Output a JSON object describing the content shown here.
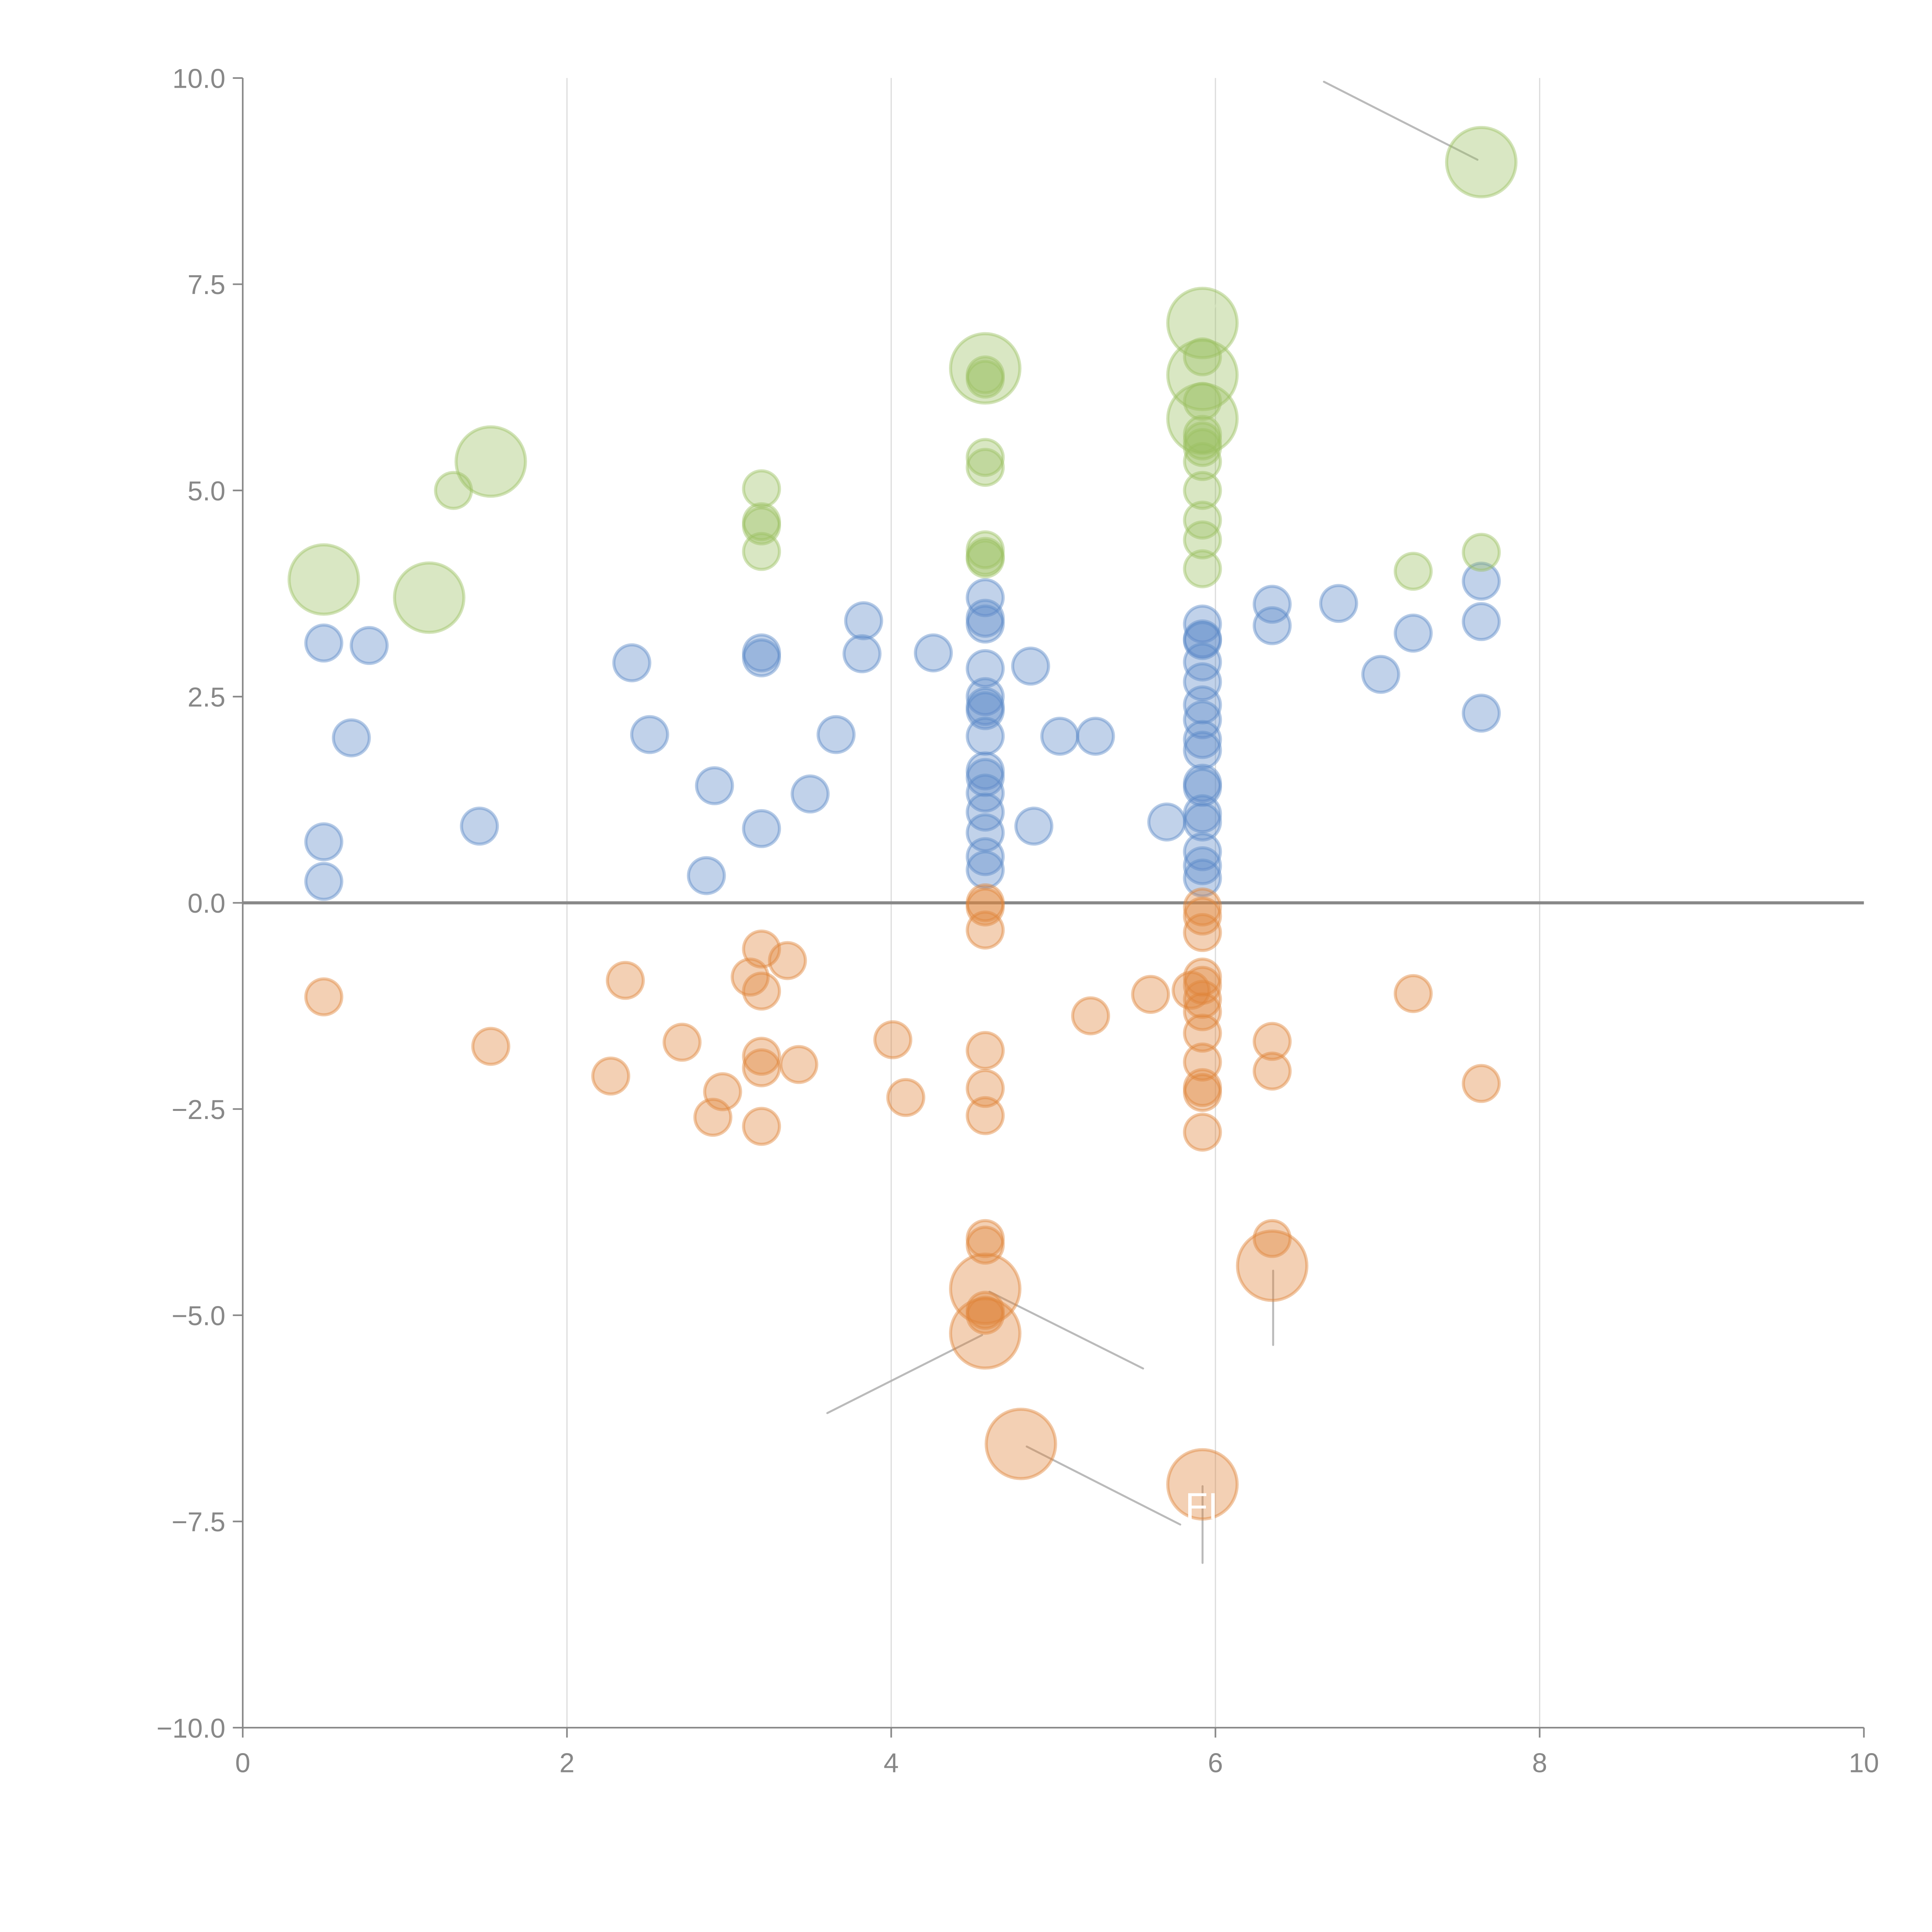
{
  "chart_data": {
    "type": "scatter",
    "title": "",
    "xlabel": "",
    "ylabel": "",
    "xlim": [
      0,
      10
    ],
    "ylim": [
      -10,
      10
    ],
    "x_ticks": [
      "0",
      "2",
      "4",
      "6",
      "8",
      "10"
    ],
    "y_ticks": [
      "10.0",
      "7.5",
      "5.0",
      "2.5",
      "0.0",
      "−2.5",
      "−5.0",
      "−7.5",
      "−10.0"
    ],
    "grid": "vertical",
    "reference_line_y": 0,
    "legend": "none",
    "series": [
      {
        "name": "blue",
        "color": "#5b8ac8",
        "points": [
          {
            "x": 0.5,
            "y": 3.15,
            "size": 1
          },
          {
            "x": 0.78,
            "y": 3.12,
            "size": 1
          },
          {
            "x": 0.67,
            "y": 2.0,
            "size": 1
          },
          {
            "x": 0.5,
            "y": 0.74,
            "size": 1
          },
          {
            "x": 0.5,
            "y": 0.26,
            "size": 1
          },
          {
            "x": 1.46,
            "y": 0.93,
            "size": 1
          },
          {
            "x": 2.4,
            "y": 2.91,
            "size": 1
          },
          {
            "x": 2.51,
            "y": 2.04,
            "size": 1
          },
          {
            "x": 2.91,
            "y": 1.42,
            "size": 1
          },
          {
            "x": 2.86,
            "y": 0.33,
            "size": 1
          },
          {
            "x": 3.2,
            "y": 3.03,
            "size": 1
          },
          {
            "x": 3.2,
            "y": 2.97,
            "size": 1
          },
          {
            "x": 3.2,
            "y": 0.9,
            "size": 1
          },
          {
            "x": 3.5,
            "y": 1.32,
            "size": 1
          },
          {
            "x": 3.66,
            "y": 2.04,
            "size": 1
          },
          {
            "x": 3.83,
            "y": 3.42,
            "size": 1
          },
          {
            "x": 3.82,
            "y": 3.02,
            "size": 1
          },
          {
            "x": 4.26,
            "y": 3.03,
            "size": 1
          },
          {
            "x": 4.58,
            "y": 3.7,
            "size": 1
          },
          {
            "x": 4.58,
            "y": 3.45,
            "size": 1
          },
          {
            "x": 4.58,
            "y": 3.38,
            "size": 1
          },
          {
            "x": 4.58,
            "y": 2.84,
            "size": 1
          },
          {
            "x": 4.58,
            "y": 2.5,
            "size": 1
          },
          {
            "x": 4.58,
            "y": 2.38,
            "size": 1
          },
          {
            "x": 4.58,
            "y": 2.33,
            "size": 1
          },
          {
            "x": 4.58,
            "y": 2.02,
            "size": 1
          },
          {
            "x": 4.58,
            "y": 1.6,
            "size": 1
          },
          {
            "x": 4.58,
            "y": 1.52,
            "size": 1
          },
          {
            "x": 4.58,
            "y": 1.33,
            "size": 1
          },
          {
            "x": 4.58,
            "y": 1.1,
            "size": 1
          },
          {
            "x": 4.58,
            "y": 0.85,
            "size": 1
          },
          {
            "x": 4.58,
            "y": 0.56,
            "size": 1
          },
          {
            "x": 4.58,
            "y": 0.4,
            "size": 1
          },
          {
            "x": 4.86,
            "y": 2.87,
            "size": 1
          },
          {
            "x": 4.88,
            "y": 0.93,
            "size": 1
          },
          {
            "x": 5.04,
            "y": 2.02,
            "size": 1
          },
          {
            "x": 5.26,
            "y": 2.02,
            "size": 1
          },
          {
            "x": 5.7,
            "y": 0.98,
            "size": 1
          },
          {
            "x": 5.92,
            "y": 3.38,
            "size": 1
          },
          {
            "x": 5.92,
            "y": 3.2,
            "size": 1
          },
          {
            "x": 5.92,
            "y": 3.18,
            "size": 1
          },
          {
            "x": 5.92,
            "y": 2.92,
            "size": 1
          },
          {
            "x": 5.92,
            "y": 2.68,
            "size": 1
          },
          {
            "x": 5.92,
            "y": 2.4,
            "size": 1
          },
          {
            "x": 5.92,
            "y": 2.22,
            "size": 1
          },
          {
            "x": 5.92,
            "y": 1.98,
            "size": 1
          },
          {
            "x": 5.92,
            "y": 1.85,
            "size": 1
          },
          {
            "x": 5.92,
            "y": 1.45,
            "size": 1
          },
          {
            "x": 5.92,
            "y": 1.4,
            "size": 1
          },
          {
            "x": 5.92,
            "y": 1.08,
            "size": 1
          },
          {
            "x": 5.92,
            "y": 0.98,
            "size": 1
          },
          {
            "x": 5.92,
            "y": 0.62,
            "size": 1
          },
          {
            "x": 5.92,
            "y": 0.45,
            "size": 1
          },
          {
            "x": 5.92,
            "y": 0.3,
            "size": 1
          },
          {
            "x": 6.35,
            "y": 3.62,
            "size": 1
          },
          {
            "x": 6.35,
            "y": 3.36,
            "size": 1
          },
          {
            "x": 6.76,
            "y": 3.63,
            "size": 1
          },
          {
            "x": 7.02,
            "y": 2.77,
            "size": 1
          },
          {
            "x": 7.22,
            "y": 3.27,
            "size": 1
          },
          {
            "x": 7.64,
            "y": 3.9,
            "size": 1
          },
          {
            "x": 7.64,
            "y": 3.41,
            "size": 1
          },
          {
            "x": 7.64,
            "y": 2.3,
            "size": 1
          }
        ]
      },
      {
        "name": "orange",
        "color": "#e0843a",
        "points": [
          {
            "x": 0.5,
            "y": -1.14,
            "size": 1
          },
          {
            "x": 1.53,
            "y": -1.74,
            "size": 1
          },
          {
            "x": 2.27,
            "y": -2.1,
            "size": 1
          },
          {
            "x": 2.36,
            "y": -0.94,
            "size": 1
          },
          {
            "x": 2.71,
            "y": -1.69,
            "size": 1
          },
          {
            "x": 2.9,
            "y": -2.6,
            "size": 1
          },
          {
            "x": 2.96,
            "y": -2.29,
            "size": 1
          },
          {
            "x": 3.13,
            "y": -0.9,
            "size": 1
          },
          {
            "x": 3.2,
            "y": -0.56,
            "size": 1
          },
          {
            "x": 3.2,
            "y": -1.07,
            "size": 1
          },
          {
            "x": 3.36,
            "y": -0.7,
            "size": 1
          },
          {
            "x": 3.2,
            "y": -1.86,
            "size": 1
          },
          {
            "x": 3.2,
            "y": -2.0,
            "size": 1
          },
          {
            "x": 3.43,
            "y": -1.96,
            "size": 1
          },
          {
            "x": 3.2,
            "y": -2.71,
            "size": 1
          },
          {
            "x": 4.01,
            "y": -1.66,
            "size": 1
          },
          {
            "x": 4.09,
            "y": -2.36,
            "size": 1
          },
          {
            "x": 4.58,
            "y": 0.0,
            "size": 1
          },
          {
            "x": 4.58,
            "y": -0.05,
            "size": 1
          },
          {
            "x": 4.58,
            "y": -0.33,
            "size": 1
          },
          {
            "x": 4.58,
            "y": -1.79,
            "size": 1
          },
          {
            "x": 4.58,
            "y": -2.25,
            "size": 1
          },
          {
            "x": 4.58,
            "y": -2.58,
            "size": 1
          },
          {
            "x": 4.58,
            "y": -4.07,
            "size": 1
          },
          {
            "x": 4.58,
            "y": -4.15,
            "size": 1
          },
          {
            "x": 4.58,
            "y": -4.68,
            "size": 3
          },
          {
            "x": 4.58,
            "y": -4.94,
            "size": 1
          },
          {
            "x": 4.58,
            "y": -5.0,
            "size": 1
          },
          {
            "x": 4.58,
            "y": -5.22,
            "size": 3
          },
          {
            "x": 4.8,
            "y": -6.56,
            "size": 3
          },
          {
            "x": 5.23,
            "y": -1.37,
            "size": 1
          },
          {
            "x": 5.6,
            "y": -1.11,
            "size": 1
          },
          {
            "x": 5.92,
            "y": -0.05,
            "size": 1
          },
          {
            "x": 5.92,
            "y": -0.16,
            "size": 1
          },
          {
            "x": 5.92,
            "y": -0.36,
            "size": 1
          },
          {
            "x": 5.92,
            "y": -0.9,
            "size": 1
          },
          {
            "x": 5.92,
            "y": -1.0,
            "size": 1
          },
          {
            "x": 5.85,
            "y": -1.06,
            "size": 1
          },
          {
            "x": 5.92,
            "y": -1.17,
            "size": 1
          },
          {
            "x": 5.92,
            "y": -1.32,
            "size": 1
          },
          {
            "x": 5.92,
            "y": -1.58,
            "size": 1
          },
          {
            "x": 5.92,
            "y": -1.93,
            "size": 1
          },
          {
            "x": 5.92,
            "y": -2.24,
            "size": 1
          },
          {
            "x": 5.92,
            "y": -2.3,
            "size": 1
          },
          {
            "x": 5.92,
            "y": -2.78,
            "size": 1
          },
          {
            "x": 5.92,
            "y": -7.05,
            "size": 3
          },
          {
            "x": 6.35,
            "y": -1.68,
            "size": 1
          },
          {
            "x": 6.35,
            "y": -2.04,
            "size": 1
          },
          {
            "x": 6.35,
            "y": -4.07,
            "size": 1
          },
          {
            "x": 6.35,
            "y": -4.4,
            "size": 3
          },
          {
            "x": 7.22,
            "y": -1.1,
            "size": 1
          },
          {
            "x": 7.64,
            "y": -2.19,
            "size": 1
          }
        ]
      },
      {
        "name": "green",
        "color": "#9bc062",
        "points": [
          {
            "x": 0.5,
            "y": 3.92,
            "size": 3
          },
          {
            "x": 1.15,
            "y": 3.7,
            "size": 3
          },
          {
            "x": 1.3,
            "y": 5.0,
            "size": 1
          },
          {
            "x": 1.53,
            "y": 5.35,
            "size": 3
          },
          {
            "x": 3.2,
            "y": 5.02,
            "size": 1
          },
          {
            "x": 3.2,
            "y": 4.62,
            "size": 1
          },
          {
            "x": 3.2,
            "y": 4.57,
            "size": 1
          },
          {
            "x": 3.2,
            "y": 4.26,
            "size": 1
          },
          {
            "x": 4.58,
            "y": 6.48,
            "size": 3
          },
          {
            "x": 4.58,
            "y": 6.4,
            "size": 1
          },
          {
            "x": 4.58,
            "y": 6.35,
            "size": 1
          },
          {
            "x": 4.58,
            "y": 5.4,
            "size": 1
          },
          {
            "x": 4.58,
            "y": 5.28,
            "size": 1
          },
          {
            "x": 4.58,
            "y": 4.28,
            "size": 1
          },
          {
            "x": 4.58,
            "y": 4.2,
            "size": 1
          },
          {
            "x": 4.58,
            "y": 4.17,
            "size": 1
          },
          {
            "x": 5.92,
            "y": 7.03,
            "size": 3
          },
          {
            "x": 5.92,
            "y": 6.62,
            "size": 1
          },
          {
            "x": 5.92,
            "y": 6.4,
            "size": 3
          },
          {
            "x": 5.92,
            "y": 6.08,
            "size": 1
          },
          {
            "x": 5.92,
            "y": 5.87,
            "size": 3
          },
          {
            "x": 5.92,
            "y": 5.68,
            "size": 1
          },
          {
            "x": 5.92,
            "y": 5.6,
            "size": 1
          },
          {
            "x": 5.92,
            "y": 5.52,
            "size": 1
          },
          {
            "x": 5.92,
            "y": 5.35,
            "size": 1
          },
          {
            "x": 5.92,
            "y": 5.0,
            "size": 1
          },
          {
            "x": 5.92,
            "y": 4.64,
            "size": 1
          },
          {
            "x": 5.92,
            "y": 4.4,
            "size": 1
          },
          {
            "x": 5.92,
            "y": 4.05,
            "size": 1
          },
          {
            "x": 7.22,
            "y": 4.02,
            "size": 1
          },
          {
            "x": 7.64,
            "y": 4.25,
            "size": 1
          },
          {
            "x": 7.64,
            "y": 8.98,
            "size": 3
          }
        ]
      }
    ],
    "annotations": [
      {
        "text": "FI",
        "x": 5.92,
        "y": -7.05
      }
    ]
  }
}
